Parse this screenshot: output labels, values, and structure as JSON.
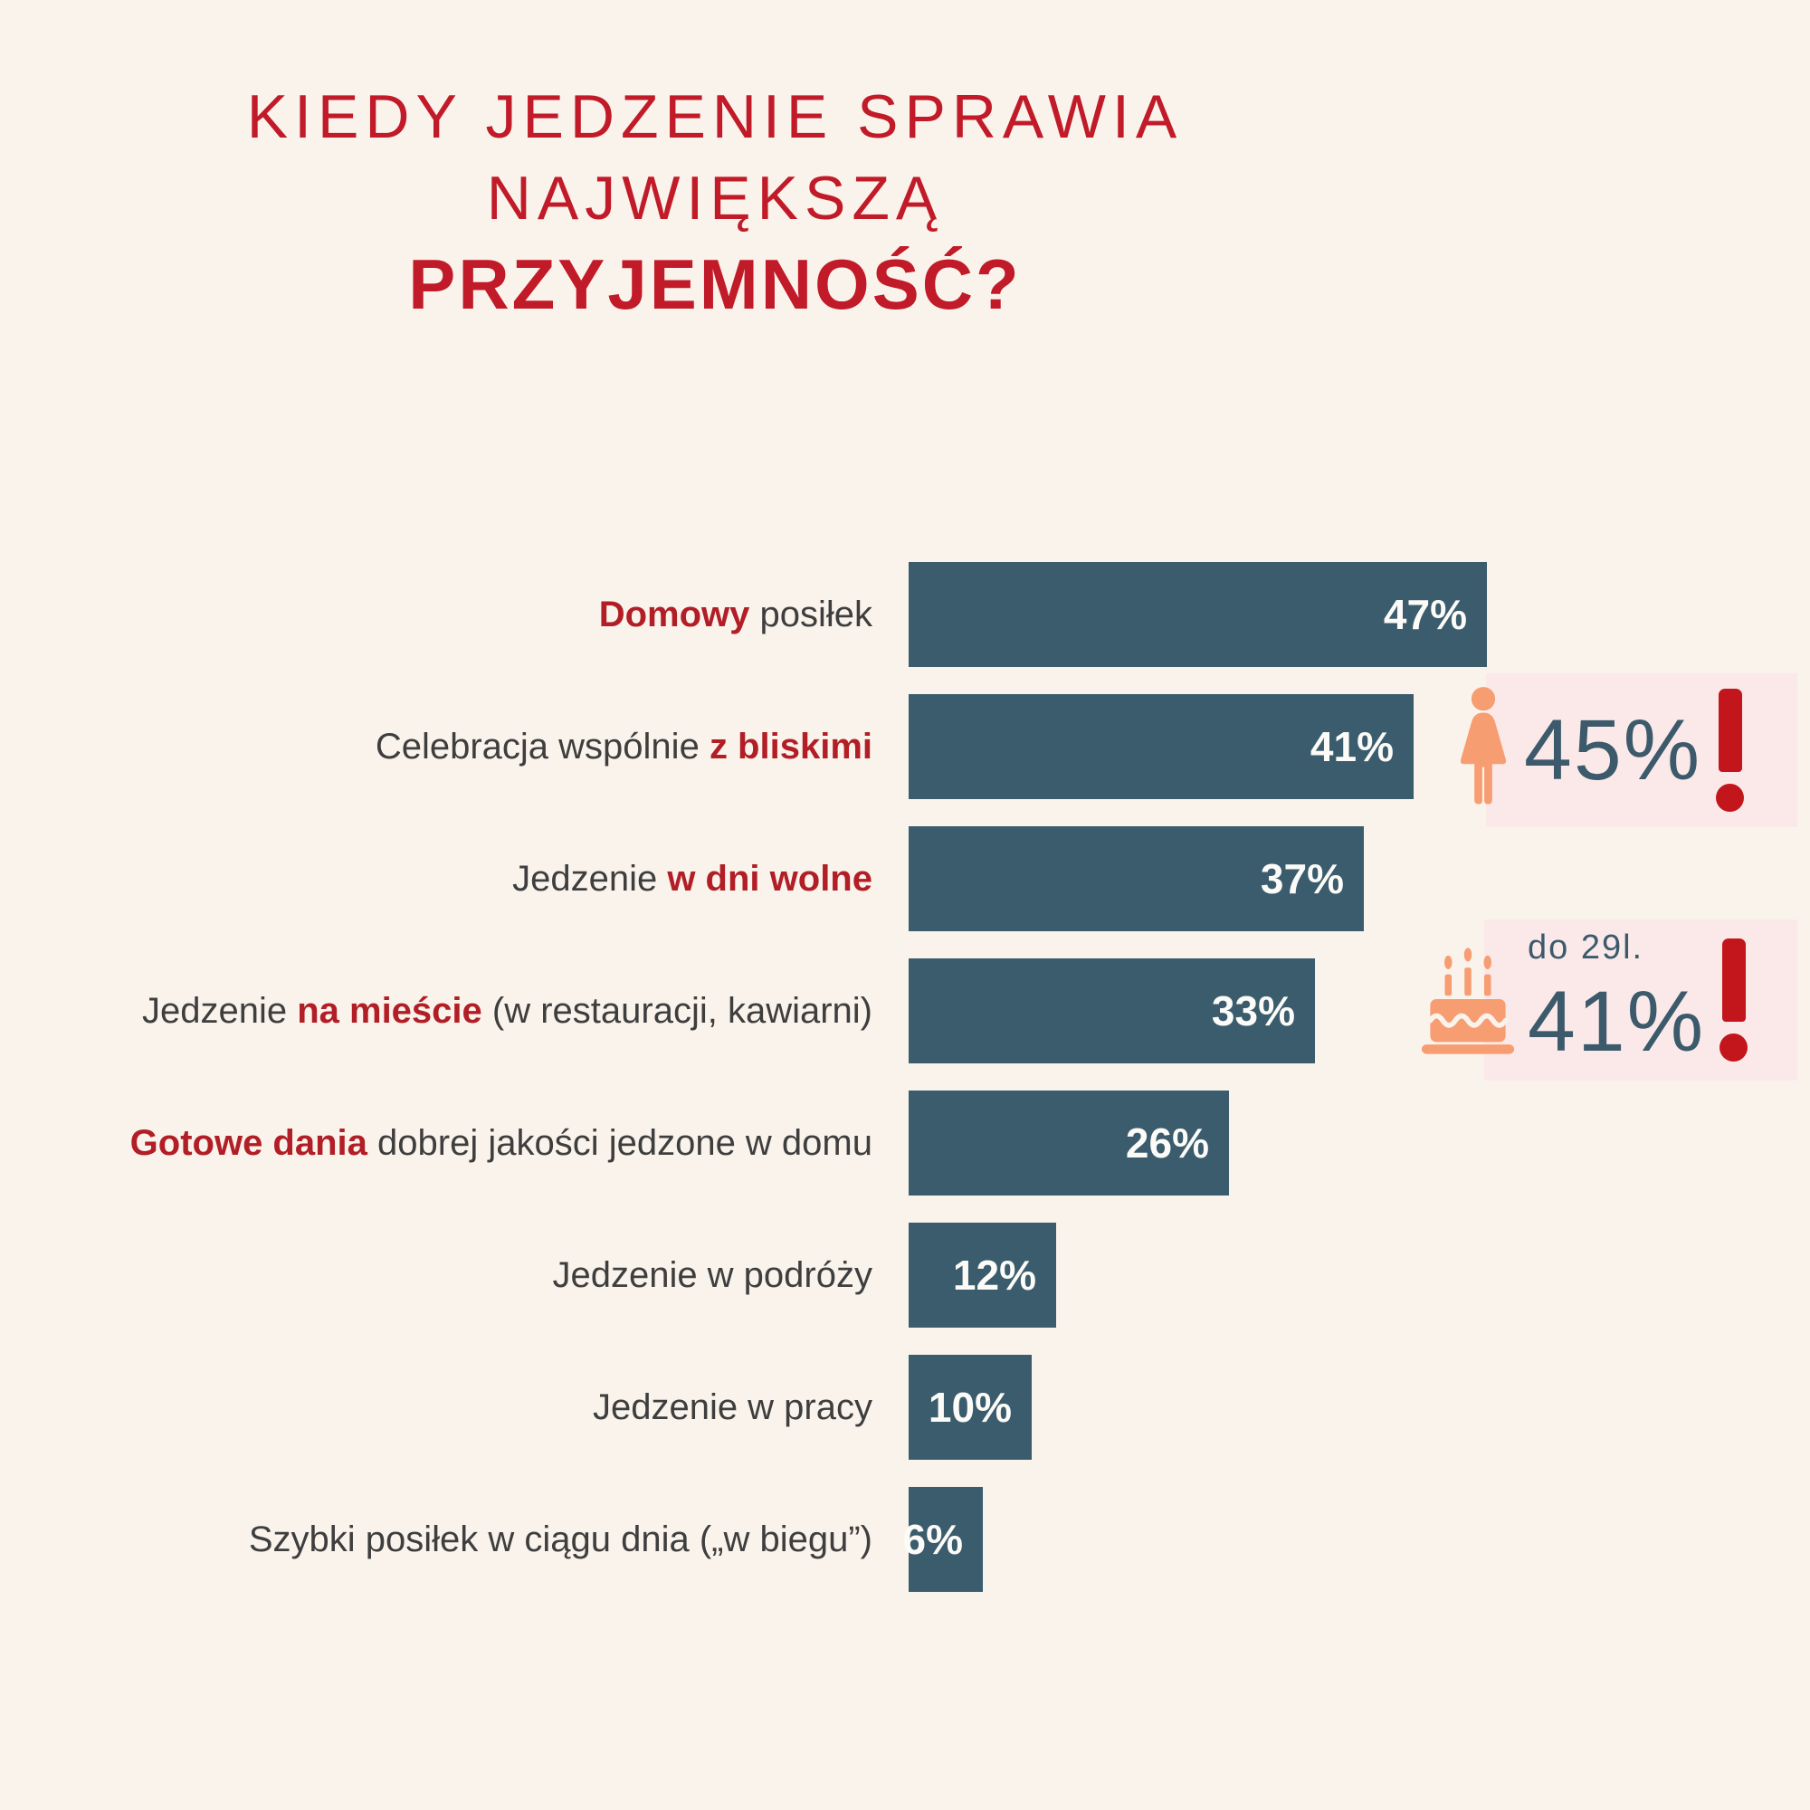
{
  "title": {
    "line1": "KIEDY JEDZENIE SPRAWIA",
    "line2": "NAJWIĘKSZĄ",
    "line3": "PRZYJEMNOŚĆ?"
  },
  "rows": [
    {
      "segments": [
        {
          "text": "Domowy",
          "red": true
        },
        {
          "text": " posiłek",
          "red": false
        }
      ],
      "value": 47,
      "value_label": "47%"
    },
    {
      "segments": [
        {
          "text": "Celebracja wspólnie ",
          "red": false
        },
        {
          "text": "z bliskimi",
          "red": true
        }
      ],
      "value": 41,
      "value_label": "41%"
    },
    {
      "segments": [
        {
          "text": "Jedzenie ",
          "red": false
        },
        {
          "text": "w dni wolne",
          "red": true
        }
      ],
      "value": 37,
      "value_label": "37%"
    },
    {
      "segments": [
        {
          "text": "Jedzenie ",
          "red": false
        },
        {
          "text": "na mieście",
          "red": true
        },
        {
          "text": " (w restauracji, kawiarni)",
          "red": false
        }
      ],
      "value": 33,
      "value_label": "33%"
    },
    {
      "segments": [
        {
          "text": "Gotowe dania",
          "red": true
        },
        {
          "text": " dobrej jakości jedzone w domu",
          "red": false
        }
      ],
      "value": 26,
      "value_label": "26%"
    },
    {
      "segments": [
        {
          "text": "Jedzenie w podróży",
          "red": false
        }
      ],
      "value": 12,
      "value_label": "12%"
    },
    {
      "segments": [
        {
          "text": "Jedzenie w pracy",
          "red": false
        }
      ],
      "value": 10,
      "value_label": "10%"
    },
    {
      "segments": [
        {
          "text": "Szybki posiłek w ciągu dnia („w biegu”)",
          "red": false
        }
      ],
      "value": 6,
      "value_label": "6%"
    }
  ],
  "callouts": {
    "women": {
      "icon": "woman-icon",
      "value": "45%",
      "exclamation": "!"
    },
    "age": {
      "icon": "birthday-cake-icon",
      "caption": "do 29l.",
      "value": "41%",
      "exclamation": "!"
    }
  },
  "colors": {
    "background": "#faf3ec",
    "title_red": "#c11a28",
    "label_red": "#b21e26",
    "label_dark": "#3e3e3e",
    "bar_fill": "#3a5c6d",
    "bar_text": "#fcfbf8",
    "callout_bg": "#fae9e8",
    "callout_text": "#3c5a6b",
    "icon_orange": "#f79d72",
    "exclamation_red": "#c3161c"
  },
  "chart_data": {
    "type": "bar",
    "orientation": "horizontal",
    "title": "KIEDY JEDZENIE SPRAWIA NAJWIĘKSZĄ PRZYJEMNOŚĆ?",
    "categories": [
      "Domowy posiłek",
      "Celebracja wspólnie z bliskimi",
      "Jedzenie w dni wolne",
      "Jedzenie na mieście (w restauracji, kawiarni)",
      "Gotowe dania dobrej jakości jedzone w domu",
      "Jedzenie w podróży",
      "Jedzenie w pracy",
      "Szybki posiłek w ciągu dnia („w biegu”)"
    ],
    "values": [
      47,
      41,
      37,
      33,
      26,
      12,
      10,
      6
    ],
    "value_suffix": "%",
    "xlim": [
      0,
      50
    ],
    "grid": false,
    "legend": false,
    "bar_color": "#3a5c6d",
    "annotations": [
      {
        "attached_to": "Celebracja wspólnie z bliskimi",
        "icon": "woman",
        "value": "45%",
        "mark": "!"
      },
      {
        "attached_to": "Jedzenie na mieście (w restauracji, kawiarni)",
        "icon": "birthday-cake",
        "caption": "do 29l.",
        "value": "41%",
        "mark": "!"
      }
    ]
  }
}
